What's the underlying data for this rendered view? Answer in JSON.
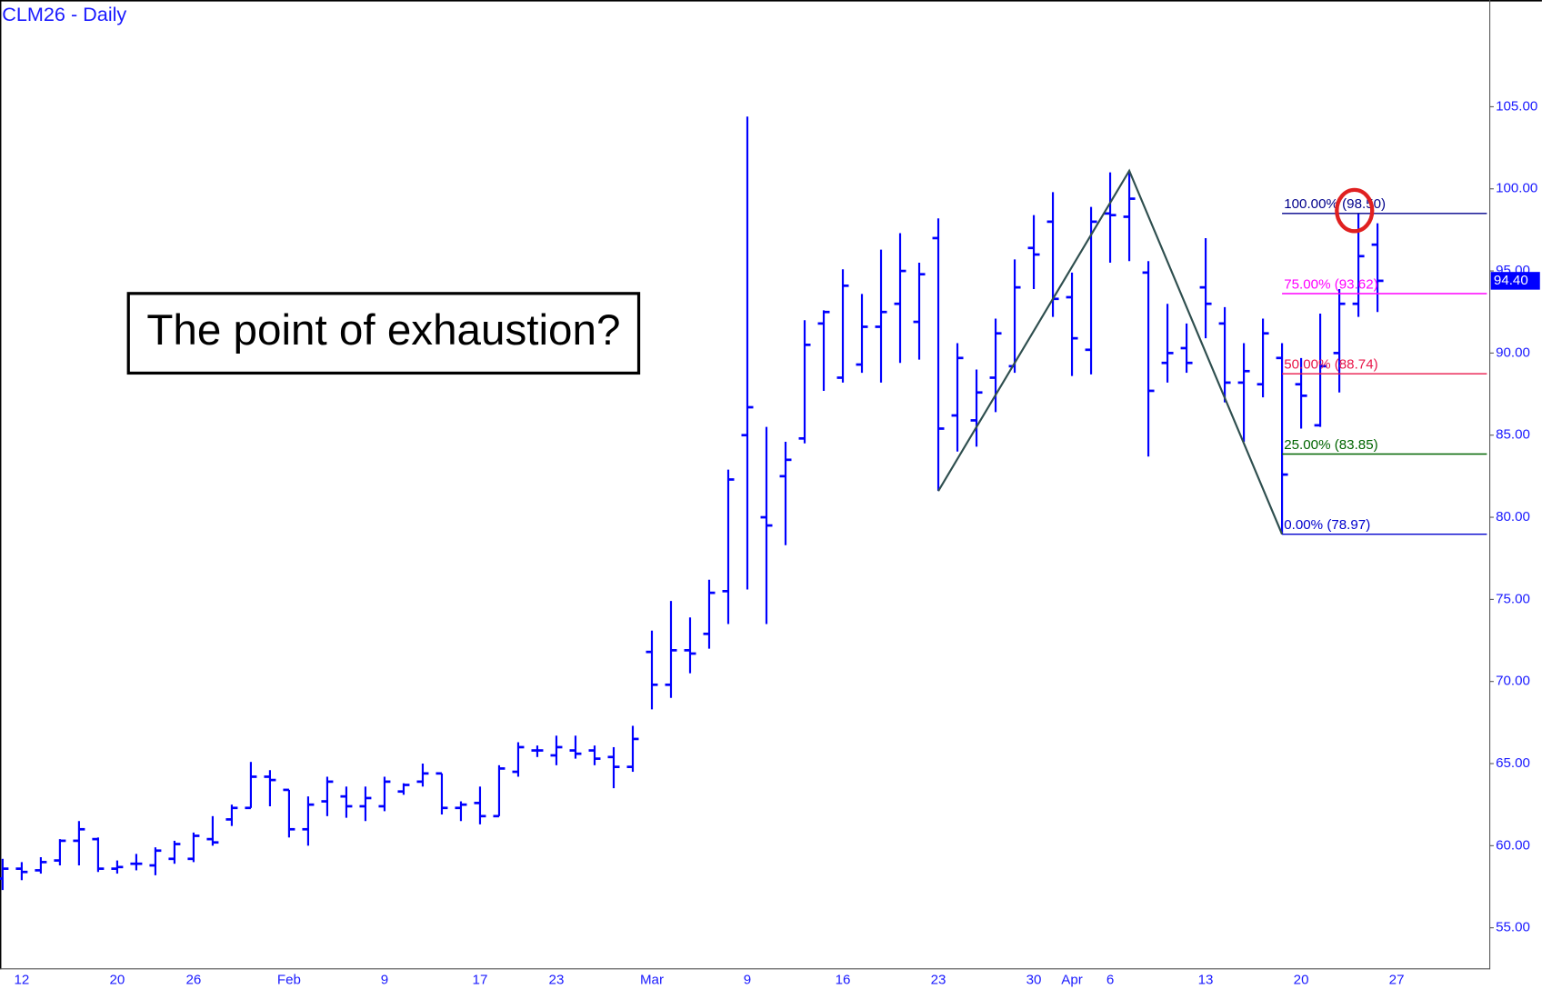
{
  "chart_data": {
    "type": "ohlc",
    "title": "CLM26 - Daily",
    "annotation": "The point of exhaustion?",
    "color": "#0000ff",
    "categories": [
      null,
      "12",
      null,
      null,
      null,
      null,
      "20",
      null,
      null,
      null,
      "26",
      null,
      null,
      null,
      null,
      "Feb",
      null,
      null,
      null,
      null,
      "9",
      null,
      null,
      null,
      null,
      "17",
      null,
      null,
      null,
      "23",
      null,
      null,
      null,
      null,
      "Mar",
      null,
      null,
      null,
      null,
      "9",
      null,
      null,
      null,
      null,
      "16",
      null,
      null,
      null,
      null,
      "23",
      null,
      null,
      null,
      null,
      "30",
      null,
      "Apr",
      null,
      "6",
      null,
      null,
      null,
      null,
      "13",
      null,
      null,
      null,
      null,
      "20",
      null,
      null,
      null,
      null,
      "27"
    ],
    "open": [
      58.0,
      58.6,
      58.5,
      59.1,
      60.3,
      60.4,
      58.6,
      58.9,
      58.8,
      59.2,
      59.2,
      60.4,
      61.6,
      62.3,
      64.2,
      63.4,
      61.0,
      62.7,
      63.0,
      62.4,
      62.4,
      63.3,
      63.9,
      64.4,
      62.3,
      62.6,
      61.8,
      64.5,
      65.8,
      65.5,
      65.8,
      65.8,
      65.4,
      64.8,
      71.8,
      69.8,
      71.9,
      72.9,
      75.5,
      85.0,
      80.0,
      82.5,
      84.8,
      91.8,
      88.5,
      89.3,
      91.6,
      93.0,
      91.9,
      97.0,
      86.2,
      85.9,
      88.5,
      89.2,
      96.4,
      98.0,
      93.4,
      90.2,
      98.5,
      98.3,
      94.9,
      89.4,
      90.3,
      94.0,
      91.8,
      88.2,
      88.1,
      89.7,
      88.1,
      85.6,
      90.0,
      93.0,
      96.6,
      null
    ],
    "high": [
      59.2,
      59.0,
      59.3,
      60.4,
      61.5,
      60.5,
      59.1,
      59.5,
      59.9,
      60.3,
      60.8,
      61.8,
      62.5,
      65.1,
      64.6,
      63.4,
      63.0,
      64.2,
      63.6,
      63.6,
      64.2,
      63.8,
      65.0,
      64.4,
      62.7,
      63.6,
      64.9,
      66.3,
      66.1,
      66.7,
      66.7,
      66.1,
      66.0,
      67.3,
      73.1,
      74.9,
      73.9,
      76.2,
      82.9,
      104.4,
      85.5,
      84.6,
      92.0,
      92.6,
      95.1,
      93.6,
      96.3,
      97.3,
      95.5,
      98.2,
      90.6,
      89.0,
      92.1,
      95.7,
      98.4,
      99.8,
      94.9,
      98.9,
      101.0,
      101.1,
      95.6,
      93.0,
      91.8,
      97.0,
      92.8,
      90.6,
      92.1,
      90.6,
      89.7,
      92.4,
      93.9,
      98.5,
      97.9,
      null
    ],
    "low": [
      57.3,
      57.9,
      58.3,
      58.8,
      58.8,
      58.4,
      58.3,
      58.5,
      58.2,
      58.9,
      59.0,
      60.0,
      61.2,
      62.3,
      62.4,
      60.5,
      60.0,
      61.8,
      61.7,
      61.5,
      62.1,
      63.1,
      63.6,
      61.9,
      61.5,
      61.3,
      61.8,
      64.2,
      65.4,
      64.9,
      65.3,
      64.9,
      63.5,
      64.5,
      68.3,
      69.0,
      70.5,
      72.0,
      73.5,
      75.6,
      73.5,
      78.3,
      84.5,
      87.7,
      88.2,
      88.8,
      88.2,
      89.4,
      89.6,
      81.6,
      84.0,
      84.3,
      86.4,
      88.8,
      93.9,
      92.2,
      88.6,
      88.7,
      95.5,
      95.6,
      83.7,
      88.2,
      88.8,
      90.9,
      87.0,
      84.6,
      87.3,
      78.97,
      85.4,
      85.5,
      87.6,
      92.2,
      92.5,
      null
    ],
    "close": [
      58.6,
      58.4,
      59.0,
      60.3,
      61.0,
      58.6,
      58.7,
      58.9,
      59.7,
      60.1,
      60.6,
      60.2,
      62.3,
      64.2,
      64.0,
      61.0,
      62.5,
      63.9,
      62.4,
      62.9,
      63.9,
      63.7,
      64.4,
      62.3,
      62.5,
      61.8,
      64.7,
      66.0,
      65.8,
      66.0,
      65.6,
      65.3,
      64.8,
      66.5,
      69.8,
      71.9,
      71.7,
      75.4,
      82.3,
      86.7,
      79.5,
      83.5,
      90.5,
      92.5,
      94.1,
      91.6,
      92.5,
      95.0,
      94.8,
      85.4,
      89.7,
      87.6,
      91.2,
      94.0,
      96.0,
      93.3,
      90.9,
      98.0,
      98.4,
      99.4,
      87.7,
      90.0,
      89.4,
      93.0,
      88.2,
      88.9,
      91.2,
      82.6,
      87.4,
      89.2,
      93.0,
      95.9,
      94.4,
      null
    ],
    "ylim": [
      52.5,
      111.5
    ],
    "yticks": [
      {
        "value": 55,
        "label": "55.00"
      },
      {
        "value": 60,
        "label": "60.00"
      },
      {
        "value": 65,
        "label": "65.00"
      },
      {
        "value": 70,
        "label": "70.00"
      },
      {
        "value": 75,
        "label": "75.00"
      },
      {
        "value": 80,
        "label": "80.00"
      },
      {
        "value": 85,
        "label": "85.00"
      },
      {
        "value": 90,
        "label": "90.00"
      },
      {
        "value": 95,
        "label": "95.00"
      },
      {
        "value": 100,
        "label": "100.00"
      },
      {
        "value": 105,
        "label": "105.00"
      }
    ],
    "grid": false,
    "last_price": {
      "value": 94.4,
      "label": "94.40",
      "color": "#0000ff"
    },
    "zigzag": {
      "color": "#2f4f4f",
      "at": [
        49,
        59,
        67
      ],
      "values": [
        81.6,
        101.1,
        78.97
      ]
    },
    "fib_levels": [
      {
        "label": "100.00% (98.50)",
        "value": 98.5,
        "color": "#00008b"
      },
      {
        "label": "75.00% (93.62)",
        "value": 93.62,
        "color": "#ff00ff"
      },
      {
        "label": "50.00% (88.74)",
        "value": 88.74,
        "color": "#e8174a"
      },
      {
        "label": "25.00% (83.85)",
        "value": 83.85,
        "color": "#006400"
      },
      {
        "label": "0.00% (78.97)",
        "value": 78.97,
        "color": "#0000cd"
      }
    ],
    "highlight_color": "#e02020"
  }
}
